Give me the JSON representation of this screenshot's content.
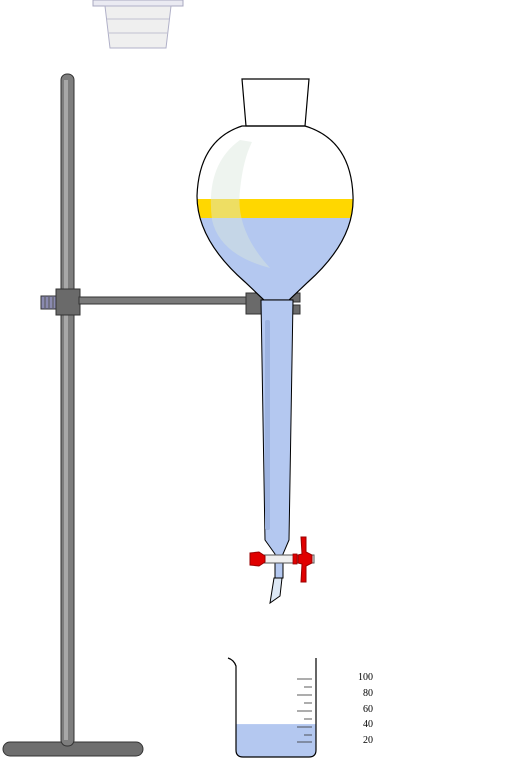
{
  "colors": {
    "background": "#ffffff",
    "aqueous_layer": "#b4c8f0",
    "organic_layer": "#ffd700",
    "stand_rod": "#7a7a7a",
    "stand_base": "#6e6e6e",
    "clamp": "#6a6a6a",
    "stopcock_handle": "#e00000",
    "glass_outline": "#000000"
  },
  "icons": {
    "stopper": "stopper-icon",
    "stand": "retort-stand-icon",
    "funnel": "separatory-funnel-icon",
    "beaker": "beaker-icon"
  },
  "levels": {
    "beaker_fill_fraction": 0.35
  },
  "beaker": {
    "scale_labels": [
      "100",
      "80",
      "60",
      "40",
      "20"
    ]
  }
}
